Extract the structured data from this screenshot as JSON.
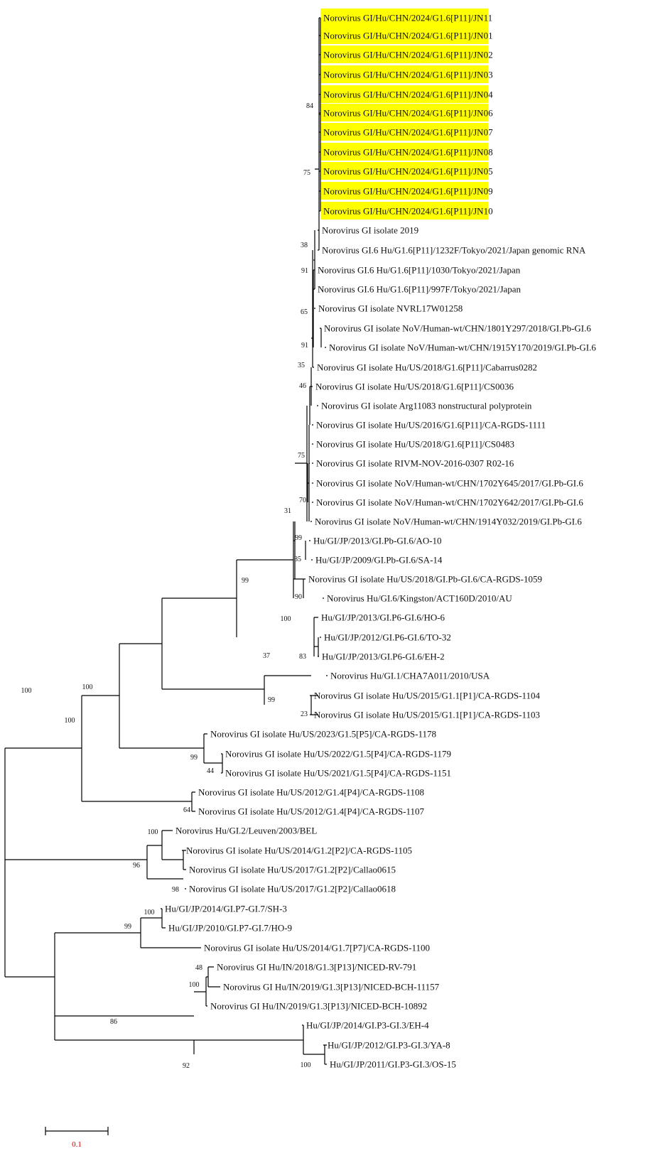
{
  "figure": {
    "highlight_color": "#ffff00",
    "scale_color": "#cc0000",
    "scale_bar_label": "0.1"
  },
  "taxa": [
    "Norovirus GI/Hu/CHN/2024/G1.6[P11]/JN11",
    "Norovirus GI/Hu/CHN/2024/G1.6[P11]/JN01",
    "Norovirus GI/Hu/CHN/2024/G1.6[P11]/JN02",
    "Norovirus GI/Hu/CHN/2024/G1.6[P11]/JN03",
    "Norovirus GI/Hu/CHN/2024/G1.6[P11]/JN04",
    "Norovirus GI/Hu/CHN/2024/G1.6[P11]/JN06",
    "Norovirus GI/Hu/CHN/2024/G1.6[P11]/JN07",
    "Norovirus GI/Hu/CHN/2024/G1.6[P11]/JN08",
    "Norovirus GI/Hu/CHN/2024/G1.6[P11]/JN05",
    "Norovirus GI/Hu/CHN/2024/G1.6[P11]/JN09",
    "Norovirus GI/Hu/CHN/2024/G1.6[P11]/JN10",
    "Norovirus GI isolate 2019",
    "Norovirus GI.6 Hu/G1.6[P11]/1232F/Tokyo/2021/Japan genomic RNA",
    "Norovirus GI.6 Hu/G1.6[P11]/1030/Tokyo/2021/Japan",
    "Norovirus GI.6 Hu/G1.6[P11]/997F/Tokyo/2021/Japan",
    "Norovirus GI isolate NVRL17W01258",
    "Norovirus GI isolate NoV/Human-wt/CHN/1801Y297/2018/GI.Pb-GI.6",
    "Norovirus GI isolate NoV/Human-wt/CHN/1915Y170/2019/GI.Pb-GI.6",
    "Norovirus GI isolate Hu/US/2018/G1.6[P11]/Cabarrus0282",
    "Norovirus GI isolate Hu/US/2018/G1.6[P11]/CS0036",
    "Norovirus GI isolate Arg11083 nonstructural polyprotein",
    "Norovirus GI isolate Hu/US/2016/G1.6[P11]/CA-RGDS-1111",
    "Norovirus GI isolate Hu/US/2018/G1.6[P11]/CS0483",
    "Norovirus GI isolate RIVM-NOV-2016-0307 R02-16",
    "Norovirus GI isolate NoV/Human-wt/CHN/1702Y645/2017/GI.Pb-GI.6",
    "Norovirus GI isolate NoV/Human-wt/CHN/1702Y642/2017/GI.Pb-GI.6",
    "Norovirus GI isolate NoV/Human-wt/CHN/1914Y032/2019/GI.Pb-GI.6",
    "Hu/GI/JP/2013/GI.Pb-GI.6/AO-10",
    "Hu/GI/JP/2009/GI.Pb-GI.6/SA-14",
    "Norovirus GI isolate Hu/US/2018/GI.Pb-GI.6/CA-RGDS-1059",
    "Norovirus Hu/GI.6/Kingston/ACT160D/2010/AU",
    "Hu/GI/JP/2013/GI.P6-GI.6/HO-6",
    "Hu/GI/JP/2012/GI.P6-GI.6/TO-32",
    "Hu/GI/JP/2013/GI.P6-GI.6/EH-2",
    "Norovirus Hu/GI.1/CHA7A011/2010/USA",
    "Norovirus GI isolate Hu/US/2015/G1.1[P1]/CA-RGDS-1104",
    "Norovirus GI isolate Hu/US/2015/G1.1[P1]/CA-RGDS-1103",
    "Norovirus GI isolate Hu/US/2023/G1.5[P5]/CA-RGDS-1178",
    "Norovirus GI isolate Hu/US/2022/G1.5[P4]/CA-RGDS-1179",
    "Norovirus GI isolate Hu/US/2021/G1.5[P4]/CA-RGDS-1151",
    "Norovirus GI isolate Hu/US/2012/G1.4[P4]/CA-RGDS-1108",
    "Norovirus GI isolate Hu/US/2012/G1.4[P4]/CA-RGDS-1107",
    "Norovirus Hu/GI.2/Leuven/2003/BEL",
    "Norovirus GI isolate Hu/US/2014/G1.2[P2]/CA-RGDS-1105",
    "Norovirus GI isolate Hu/US/2017/G1.2[P2]/Callao0615",
    "Norovirus GI isolate Hu/US/2017/G1.2[P2]/Callao0618",
    "Hu/GI/JP/2014/GI.P7-GI.7/SH-3",
    "Hu/GI/JP/2010/GI.P7-GI.7/HO-9",
    "Norovirus GI isolate Hu/US/2014/G1.7[P7]/CA-RGDS-1100",
    "Norovirus GI Hu/IN/2018/G1.3[P13]/NICED-RV-791",
    "Norovirus GI Hu/IN/2019/G1.3[P13]/NICED-BCH-11157",
    "Norovirus GI Hu/IN/2019/G1.3[P13]/NICED-BCH-10892",
    "Hu/GI/JP/2014/GI.P3-GI.3/EH-4",
    "Hu/GI/JP/2012/GI.P3-GI.3/YA-8",
    "Hu/GI/JP/2011/GI.P3-GI.3/OS-15"
  ],
  "highlighted_count": 11,
  "support_values": [
    "84",
    "75",
    "38",
    "91",
    "65",
    "91",
    "35",
    "46",
    "75",
    "31",
    "70",
    "99",
    "85",
    "90",
    "99",
    "100",
    "83",
    "37",
    "100",
    "99",
    "23",
    "100",
    "99",
    "44",
    "100",
    "64",
    "100",
    "96",
    "98",
    "100",
    "99",
    "48",
    "100",
    "86",
    "92",
    "100"
  ]
}
